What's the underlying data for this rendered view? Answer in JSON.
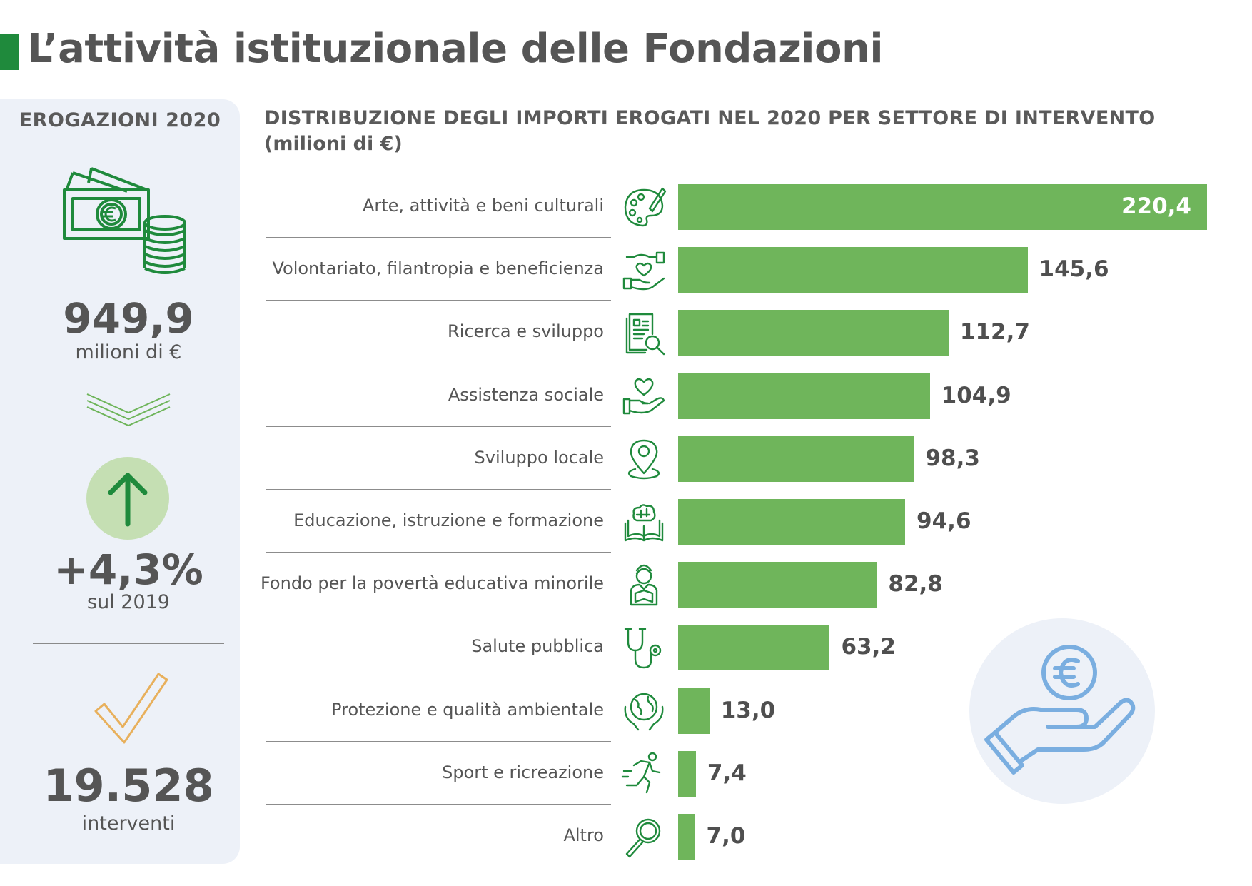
{
  "header": {
    "title": "L’attività istituzionale delle Fondazioni"
  },
  "sidebar": {
    "heading": "EROGAZIONI 2020",
    "total_value": "949,9",
    "total_unit": "milioni di €",
    "growth_value": "+4,3%",
    "growth_note": "sul 2019",
    "count_value": "19.528",
    "count_unit": "interventi"
  },
  "colors": {
    "accent": "#1f8a3c",
    "bar": "#6fb55b",
    "panel": "#edf1f8",
    "circle": "#c5dfb3",
    "check": "#e8b05c",
    "hand": "#7aaee0"
  },
  "chart_data": {
    "type": "bar",
    "orientation": "horizontal",
    "title": "DISTRIBUZIONE DEGLI IMPORTI EROGATI NEL 2020 PER SETTORE DI INTERVENTO",
    "subtitle": "(milioni di €)",
    "categories": [
      "Arte, attività e beni culturali",
      "Volontariato, filantropia e beneficienza",
      "Ricerca e sviluppo",
      "Assistenza sociale",
      "Sviluppo locale",
      "Educazione, istruzione e formazione",
      "Fondo per la povertà educativa minorile",
      "Salute pubblica",
      "Protezione e qualità ambientale",
      "Sport e ricreazione",
      "Altro"
    ],
    "values": [
      220.4,
      145.6,
      112.7,
      104.9,
      98.3,
      94.6,
      82.8,
      63.2,
      13.0,
      7.4,
      7.0
    ],
    "value_labels": [
      "220,4",
      "145,6",
      "112,7",
      "104,9",
      "98,3",
      "94,6",
      "82,8",
      "63,2",
      "13,0",
      "7,4",
      "7,0"
    ],
    "icons": [
      "palette-icon",
      "heart-hands-icon",
      "research-document-icon",
      "heart-hand-icon",
      "location-pin-icon",
      "book-brain-icon",
      "student-icon",
      "stethoscope-icon",
      "globe-hands-icon",
      "runner-icon",
      "magnifier-icon"
    ],
    "grid": false,
    "legend": "none"
  }
}
